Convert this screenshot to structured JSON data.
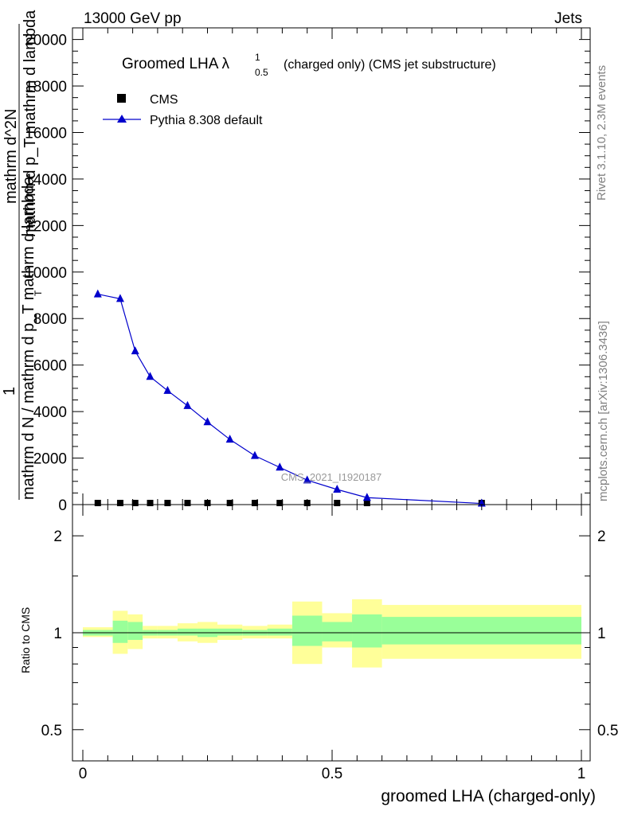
{
  "header": {
    "left": "13000 GeV pp",
    "right": "Jets"
  },
  "side_labels": {
    "rivet": "Rivet 3.1.10,  2.3M events",
    "mcplots": "mcplots.cern.ch [arXiv:1306.3436]"
  },
  "chart_data": [
    {
      "type": "line",
      "title": {
        "main": "Groomed LHA",
        "symbol": "λ",
        "sup": "1",
        "sub": "0.5",
        "rest": "(charged only) (CMS jet substructure)"
      },
      "watermark": "CMS_2021_I1920187",
      "ylabel": {
        "numerator": "1",
        "denominator": "mathrm d N / mathrm d p_T mathrm d lambda",
        "overlay_top": "mathrm d^2N",
        "overlay_bottom": "mathrm d p_T mathrm d lambda",
        "sub_T": "T"
      },
      "xlim": [
        0,
        1
      ],
      "ylim": [
        0,
        20500
      ],
      "yticks": [
        0,
        2000,
        4000,
        6000,
        8000,
        10000,
        12000,
        14000,
        16000,
        18000,
        20000
      ],
      "ytick_labels": [
        "0",
        "2000",
        "4000",
        "6000",
        "8000",
        "10000",
        "12000",
        "14000",
        "16000",
        "18000",
        "20000"
      ],
      "legend_position": "top-left",
      "series": [
        {
          "name": "CMS",
          "marker": "square",
          "color": "#000000",
          "x": [
            0.03,
            0.075,
            0.105,
            0.135,
            0.17,
            0.21,
            0.25,
            0.295,
            0.345,
            0.395,
            0.45,
            0.51,
            0.57,
            0.8
          ],
          "y": [
            0,
            0,
            0,
            0,
            0,
            0,
            0,
            0,
            0,
            0,
            0,
            0,
            0,
            0
          ]
        },
        {
          "name": "Pythia 8.308 default",
          "marker": "triangle",
          "color": "#0000cc",
          "x": [
            0.03,
            0.075,
            0.105,
            0.135,
            0.17,
            0.21,
            0.25,
            0.295,
            0.345,
            0.395,
            0.45,
            0.51,
            0.57,
            0.8
          ],
          "y": [
            9050,
            8850,
            6600,
            5500,
            4900,
            4250,
            3550,
            2800,
            2100,
            1600,
            1050,
            650,
            300,
            50
          ]
        }
      ]
    },
    {
      "type": "area",
      "ylabel": "Ratio to CMS",
      "xlabel": "groomed LHA (charged-only)",
      "scale": "log",
      "ylim": [
        0.4,
        2.5
      ],
      "ytick_labels": [
        "0.5",
        "1",
        "2"
      ],
      "yticks": [
        0.5,
        1,
        2
      ],
      "xticks": [
        0,
        0.5,
        1
      ],
      "xtick_labels": [
        "0",
        "0.5",
        "1"
      ],
      "reference_line": 1,
      "bands": [
        {
          "x0": 0.0,
          "x1": 0.06,
          "stat_lo": 0.98,
          "stat_hi": 1.02,
          "tot_lo": 0.97,
          "tot_hi": 1.04
        },
        {
          "x0": 0.06,
          "x1": 0.09,
          "stat_lo": 0.93,
          "stat_hi": 1.09,
          "tot_lo": 0.86,
          "tot_hi": 1.17
        },
        {
          "x0": 0.09,
          "x1": 0.12,
          "stat_lo": 0.95,
          "stat_hi": 1.08,
          "tot_lo": 0.89,
          "tot_hi": 1.14
        },
        {
          "x0": 0.12,
          "x1": 0.15,
          "stat_lo": 0.98,
          "stat_hi": 1.02,
          "tot_lo": 0.96,
          "tot_hi": 1.05
        },
        {
          "x0": 0.15,
          "x1": 0.19,
          "stat_lo": 0.98,
          "stat_hi": 1.02,
          "tot_lo": 0.96,
          "tot_hi": 1.05
        },
        {
          "x0": 0.19,
          "x1": 0.23,
          "stat_lo": 0.98,
          "stat_hi": 1.03,
          "tot_lo": 0.94,
          "tot_hi": 1.07
        },
        {
          "x0": 0.23,
          "x1": 0.27,
          "stat_lo": 0.97,
          "stat_hi": 1.03,
          "tot_lo": 0.93,
          "tot_hi": 1.08
        },
        {
          "x0": 0.27,
          "x1": 0.32,
          "stat_lo": 0.98,
          "stat_hi": 1.03,
          "tot_lo": 0.95,
          "tot_hi": 1.06
        },
        {
          "x0": 0.32,
          "x1": 0.37,
          "stat_lo": 0.98,
          "stat_hi": 1.02,
          "tot_lo": 0.96,
          "tot_hi": 1.05
        },
        {
          "x0": 0.37,
          "x1": 0.42,
          "stat_lo": 0.98,
          "stat_hi": 1.03,
          "tot_lo": 0.96,
          "tot_hi": 1.06
        },
        {
          "x0": 0.42,
          "x1": 0.48,
          "stat_lo": 0.91,
          "stat_hi": 1.13,
          "tot_lo": 0.8,
          "tot_hi": 1.25
        },
        {
          "x0": 0.48,
          "x1": 0.54,
          "stat_lo": 0.94,
          "stat_hi": 1.08,
          "tot_lo": 0.9,
          "tot_hi": 1.15
        },
        {
          "x0": 0.54,
          "x1": 0.6,
          "stat_lo": 0.9,
          "stat_hi": 1.14,
          "tot_lo": 0.78,
          "tot_hi": 1.27
        },
        {
          "x0": 0.6,
          "x1": 1.0,
          "stat_lo": 0.92,
          "stat_hi": 1.12,
          "tot_lo": 0.83,
          "tot_hi": 1.22
        }
      ],
      "colors": {
        "stat": "#99ff99",
        "total": "#ffff99"
      }
    }
  ]
}
